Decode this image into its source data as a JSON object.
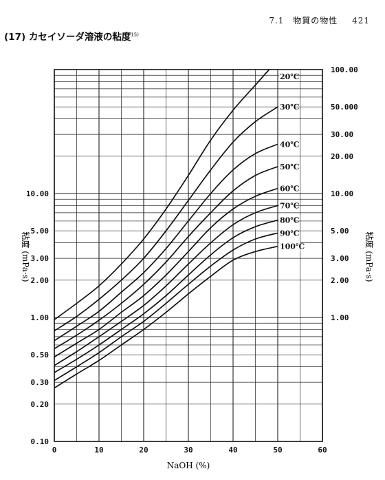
{
  "header": {
    "section": "7.1",
    "chapter": "物質の物性",
    "page": "421"
  },
  "section_title": {
    "number": "(17)",
    "text": "カセイソーダ溶液の粘度",
    "ref": "15)"
  },
  "chart_data": {
    "type": "line",
    "title": "",
    "xlabel": "NaOH (%)",
    "ylabel_left": "粘度 (mPa·s)",
    "ylabel_right": "粘度 (mPa·s)",
    "xlim": [
      0,
      60
    ],
    "ylim": [
      0.1,
      100
    ],
    "y_scale": "log",
    "grid": true,
    "x_ticks": [
      0,
      10,
      20,
      30,
      40,
      50,
      60
    ],
    "x_tick_labels": [
      "0",
      "10",
      "20",
      "30",
      "40",
      "50",
      "60"
    ],
    "y_ticks_left": [
      0.1,
      0.2,
      0.3,
      0.5,
      1,
      2,
      3,
      5,
      10
    ],
    "y_tick_labels_left": [
      "0.10",
      "0.20",
      "0.30",
      "0.50",
      "1.00",
      "2.00",
      "3.00",
      "5.00",
      "10.00"
    ],
    "y_ticks_right": [
      1,
      2,
      3,
      5,
      10,
      20,
      30,
      50,
      100
    ],
    "y_tick_labels_right": [
      "1.00",
      "2.00",
      "3.00",
      "5.00",
      "10.00",
      "20.00",
      "30.00",
      "50.000",
      "100.00"
    ],
    "x": [
      0,
      5,
      10,
      15,
      20,
      25,
      30,
      35,
      40,
      45,
      50
    ],
    "series": [
      {
        "name": "20℃",
        "values": [
          0.96,
          1.3,
          1.8,
          2.7,
          4.3,
          7.5,
          14,
          27,
          47,
          75,
          null
        ]
      },
      {
        "name": "30℃",
        "values": [
          0.78,
          1.02,
          1.4,
          2.0,
          3.0,
          5.0,
          8.8,
          15.5,
          26,
          38,
          50
        ]
      },
      {
        "name": "40℃",
        "values": [
          0.65,
          0.85,
          1.12,
          1.6,
          2.3,
          3.6,
          6.0,
          10,
          15.5,
          21,
          25
        ]
      },
      {
        "name": "50℃",
        "values": [
          0.56,
          0.72,
          0.95,
          1.3,
          1.85,
          2.8,
          4.5,
          7.0,
          10.5,
          14,
          16.5
        ]
      },
      {
        "name": "60℃",
        "values": [
          0.48,
          0.62,
          0.8,
          1.1,
          1.5,
          2.2,
          3.4,
          5.3,
          7.5,
          9.5,
          11
        ]
      },
      {
        "name": "70℃",
        "values": [
          0.41,
          0.53,
          0.7,
          0.93,
          1.25,
          1.8,
          2.7,
          4.0,
          5.6,
          7.0,
          8.0
        ]
      },
      {
        "name": "80℃",
        "values": [
          0.36,
          0.46,
          0.6,
          0.8,
          1.07,
          1.5,
          2.2,
          3.2,
          4.4,
          5.4,
          6.1
        ]
      },
      {
        "name": "90℃",
        "values": [
          0.31,
          0.4,
          0.52,
          0.7,
          0.93,
          1.3,
          1.85,
          2.6,
          3.5,
          4.3,
          4.8
        ]
      },
      {
        "name": "100℃",
        "values": [
          0.27,
          0.35,
          0.45,
          0.6,
          0.8,
          1.1,
          1.55,
          2.15,
          2.9,
          3.4,
          3.75
        ]
      }
    ]
  }
}
